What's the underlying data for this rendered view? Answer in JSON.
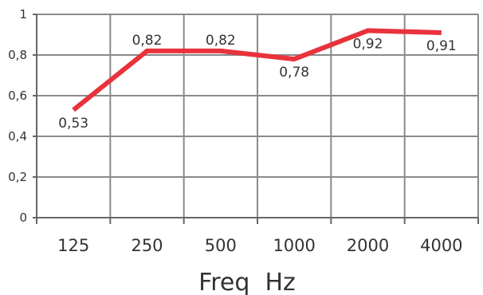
{
  "chart_data": {
    "type": "line",
    "categories": [
      "125",
      "250",
      "500",
      "1000",
      "2000",
      "4000"
    ],
    "values": [
      0.53,
      0.82,
      0.82,
      0.78,
      0.92,
      0.91
    ],
    "data_labels": [
      "0,53",
      "0,82",
      "0,82",
      "0,78",
      "0,92",
      "0,91"
    ],
    "xlabel": "Freq  Hz",
    "ylabel": "",
    "title": "",
    "ylim": [
      0,
      1
    ],
    "yticks": [
      0,
      0.2,
      0.4,
      0.6,
      0.8,
      1
    ],
    "ytick_labels": [
      "0",
      "0,2",
      "0,4",
      "0,6",
      "0,8",
      "1"
    ],
    "grid": true,
    "legend": "none",
    "colors": {
      "line": "#e8323c",
      "grid": "#8a8a8a",
      "axis": "#666666"
    }
  }
}
